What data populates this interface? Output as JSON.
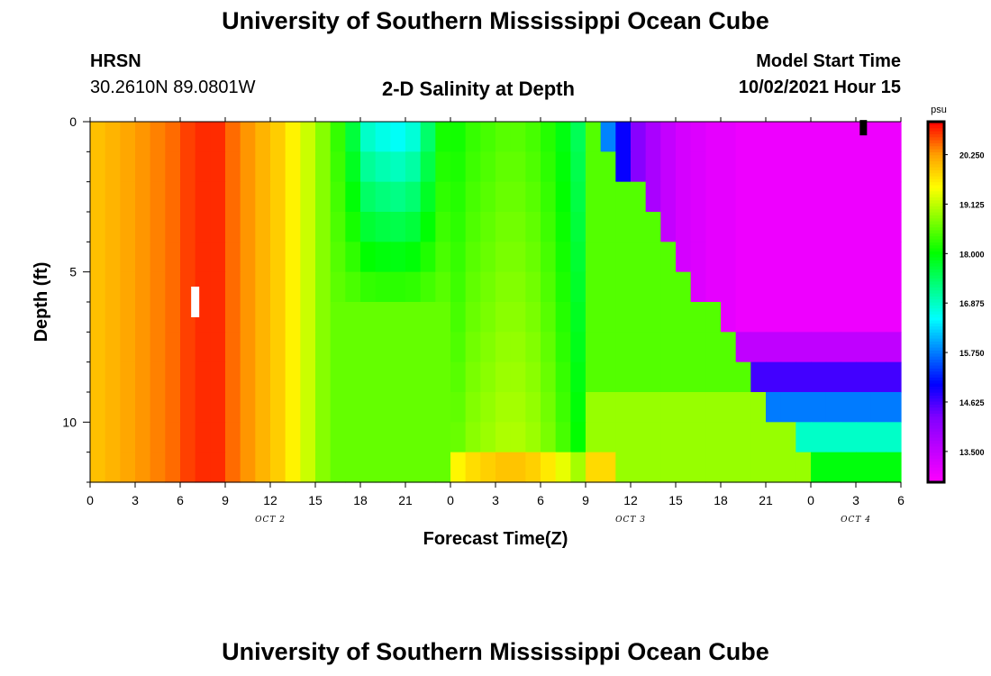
{
  "header": {
    "title": "University of Southern Mississippi Ocean Cube",
    "footer_title": "University of Southern Mississippi Ocean Cube",
    "station_name": "HRSN",
    "station_coords": "30.2610N  89.0801W",
    "plot_title": "2-D Salinity at Depth",
    "model_start_label": "Model Start Time",
    "model_start_value": "10/02/2021 Hour 15"
  },
  "colors": {
    "palette": [
      "#ff00ff",
      "#c000ff",
      "#8000ff",
      "#0000ff",
      "#0080ff",
      "#00ffff",
      "#00ff80",
      "#00ff00",
      "#80ff00",
      "#ffff00",
      "#ffa000",
      "#ff0000"
    ]
  },
  "chart_data": {
    "type": "heatmap",
    "title": "2-D Salinity at Depth",
    "xlabel": "Forecast Time(Z)",
    "ylabel": "Depth (ft)",
    "x_range_hours": [
      0,
      54
    ],
    "x_tick_step_hours": 3,
    "x_tick_labels": [
      "0",
      "3",
      "6",
      "9",
      "12",
      "15",
      "18",
      "21",
      "0",
      "3",
      "6",
      "9",
      "12",
      "15",
      "18",
      "21",
      "0",
      "3",
      "6"
    ],
    "date_labels": [
      {
        "text": "OCT 2",
        "hour": 12
      },
      {
        "text": "OCT 3",
        "hour": 36
      },
      {
        "text": "OCT 4",
        "hour": 51
      }
    ],
    "y_range_ft": [
      0,
      12
    ],
    "y_major_ticks": [
      0,
      5,
      10
    ],
    "y_minor_step": 1,
    "depth_rows_ft": [
      0.5,
      1.5,
      2.5,
      3.5,
      4.5,
      5.5,
      6.5,
      7.5,
      8.5,
      9.5,
      10.5,
      11.5
    ],
    "value_unit": "psu",
    "colorbar": {
      "unit": "psu",
      "range": [
        12.8,
        21.0
      ],
      "tick_labels": [
        "20.250",
        "19.125",
        "18.000",
        "16.875",
        "15.750",
        "14.625",
        "13.500"
      ],
      "tick_values": [
        20.25,
        19.125,
        18.0,
        16.875,
        15.75,
        14.625,
        13.5
      ]
    },
    "salinity_grid": {
      "description": "rows = depth_rows_ft, cols = hourly forecast 0..54",
      "hours": [
        0,
        1,
        2,
        3,
        4,
        5,
        6,
        7,
        8,
        9,
        10,
        11,
        12,
        13,
        14,
        15,
        16,
        17,
        18,
        19,
        20,
        21,
        22,
        23,
        24,
        25,
        26,
        27,
        28,
        29,
        30,
        31,
        32,
        33,
        34,
        35,
        36,
        37,
        38,
        39,
        40,
        41,
        42,
        43,
        44,
        45,
        46,
        47,
        48,
        49,
        50,
        51,
        52,
        53,
        54
      ],
      "base_profile_psu": [
        20.0,
        20.1,
        20.2,
        20.3,
        20.4,
        20.5,
        20.7,
        20.8,
        20.8,
        20.5,
        20.3,
        20.1,
        19.9,
        19.6,
        19.2,
        18.8,
        18.3,
        17.6,
        16.7,
        16.5,
        16.4,
        16.6,
        17.3,
        18.1,
        18.4,
        18.6,
        18.7,
        18.8,
        18.8,
        18.7,
        18.5,
        18.2,
        17.8,
        17.0,
        15.8,
        15.0,
        14.2,
        13.8,
        13.5,
        13.3,
        13.2,
        13.1,
        13.1,
        13.0,
        13.0,
        13.0,
        13.0,
        13.0,
        13.0,
        13.0,
        13.0,
        13.0,
        13.0,
        13.0,
        13.0
      ]
    },
    "annotations": [
      {
        "type": "marker",
        "color": "#ffffff",
        "hour": 7,
        "depth_ft": 6
      },
      {
        "type": "marker",
        "color": "#000000",
        "hour": 51.5,
        "depth_ft": 0.2
      }
    ]
  }
}
